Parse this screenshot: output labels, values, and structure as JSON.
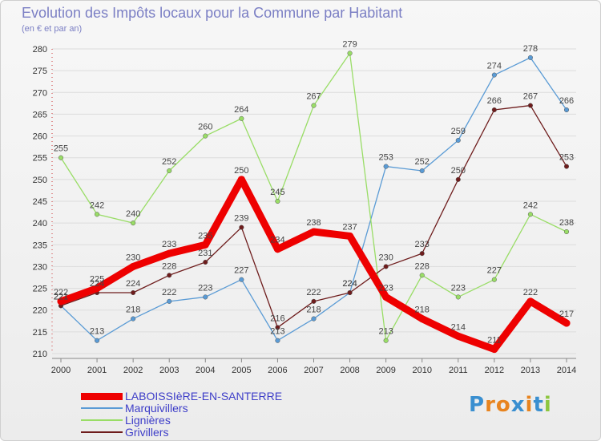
{
  "title": "Evolution des Impôts locaux pour la Commune par Habitant",
  "subtitle": "(en € et par an)",
  "logo": {
    "text": "Proxiti",
    "colors": [
      "#3a8fd0",
      "#e8841f",
      "#e8841f",
      "#3a8fd0",
      "#e8841f",
      "#3a8fd0",
      "#8dc63f"
    ]
  },
  "chart_data": {
    "type": "line",
    "x": [
      2000,
      2001,
      2002,
      2003,
      2004,
      2005,
      2006,
      2007,
      2008,
      2009,
      2010,
      2011,
      2012,
      2013,
      2014
    ],
    "ylim": [
      210,
      280
    ],
    "yticks": [
      210,
      215,
      220,
      225,
      230,
      235,
      240,
      245,
      250,
      255,
      260,
      265,
      270,
      275,
      280
    ],
    "grid": "horizontal",
    "legend_position": "bottom-left",
    "series": [
      {
        "name": "Marquivillers",
        "color": "#5a9bd5",
        "width": 1.3,
        "values": [
          221,
          213,
          218,
          222,
          223,
          227,
          213,
          218,
          224,
          253,
          252,
          259,
          274,
          278,
          266
        ]
      },
      {
        "name": "Lignières",
        "color": "#99dd66",
        "width": 1.3,
        "values": [
          255,
          242,
          240,
          252,
          260,
          264,
          245,
          267,
          279,
          213,
          228,
          223,
          227,
          242,
          238
        ]
      },
      {
        "name": "Grivillers",
        "color": "#6e1c1c",
        "width": 1.3,
        "values": [
          221,
          224,
          224,
          228,
          231,
          239,
          216,
          222,
          224,
          230,
          233,
          250,
          266,
          267,
          253
        ]
      },
      {
        "name": "LABOISSIèRE-EN-SANTERRE",
        "color": "#ee0000",
        "width": 9,
        "values": [
          222,
          225,
          230,
          233,
          235,
          250,
          234,
          238,
          237,
          223,
          218,
          214,
          211,
          222,
          217
        ]
      }
    ],
    "legend_order": [
      3,
      0,
      1,
      2
    ]
  }
}
